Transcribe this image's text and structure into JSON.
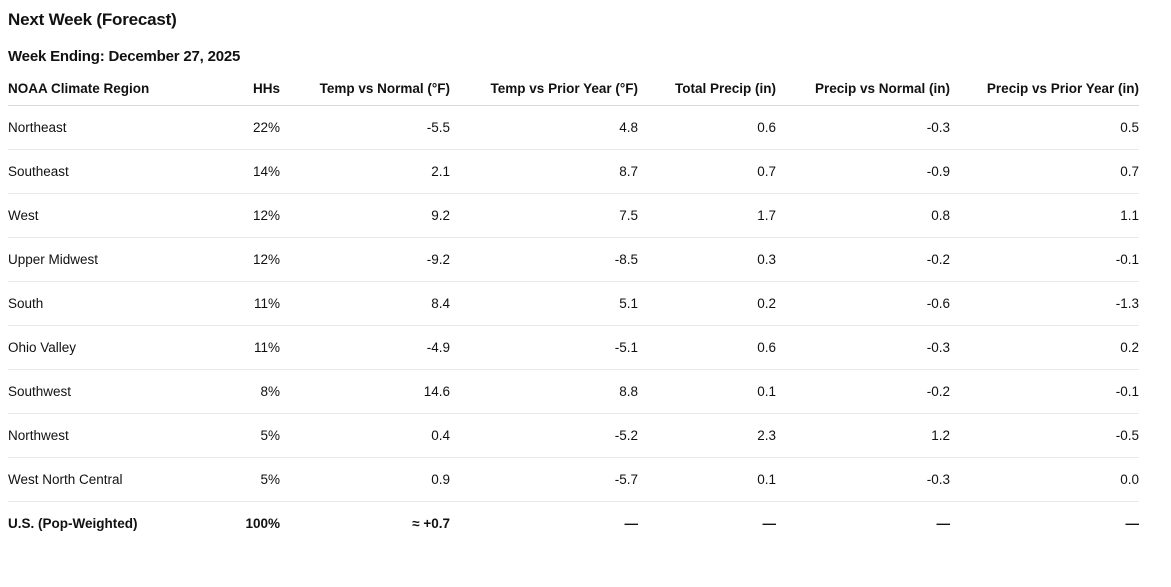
{
  "chart_data": {
    "type": "table",
    "title": "Next Week (Forecast)",
    "subtitle": "Week Ending: December 27, 2025",
    "columns": [
      "NOAA Climate Region",
      "HHs",
      "Temp vs Normal (°F)",
      "Temp vs Prior Year (°F)",
      "Total Precip (in)",
      "Precip vs Normal (in)",
      "Precip vs Prior Year (in)"
    ],
    "rows": [
      [
        "Northeast",
        "22%",
        "-5.5",
        "4.8",
        "0.6",
        "-0.3",
        "0.5"
      ],
      [
        "Southeast",
        "14%",
        "2.1",
        "8.7",
        "0.7",
        "-0.9",
        "0.7"
      ],
      [
        "West",
        "12%",
        "9.2",
        "7.5",
        "1.7",
        "0.8",
        "1.1"
      ],
      [
        "Upper Midwest",
        "12%",
        "-9.2",
        "-8.5",
        "0.3",
        "-0.2",
        "-0.1"
      ],
      [
        "South",
        "11%",
        "8.4",
        "5.1",
        "0.2",
        "-0.6",
        "-1.3"
      ],
      [
        "Ohio Valley",
        "11%",
        "-4.9",
        "-5.1",
        "0.6",
        "-0.3",
        "0.2"
      ],
      [
        "Southwest",
        "8%",
        "14.6",
        "8.8",
        "0.1",
        "-0.2",
        "-0.1"
      ],
      [
        "Northwest",
        "5%",
        "0.4",
        "-5.2",
        "2.3",
        "1.2",
        "-0.5"
      ],
      [
        "West North Central",
        "5%",
        "0.9",
        "-5.7",
        "0.1",
        "-0.3",
        "0.0"
      ]
    ],
    "total_row": [
      "U.S. (Pop-Weighted)",
      "100%",
      "≈ +0.7",
      "—",
      "—",
      "—",
      "—"
    ],
    "layout": {
      "first_column_align": "left",
      "numeric_align": "right",
      "row_separators": true,
      "total_row_bold": true
    }
  },
  "colors": {
    "text": "#111111",
    "background": "#ffffff",
    "header_divider": "#d9d9d9",
    "row_divider": "#e9e9e9"
  }
}
